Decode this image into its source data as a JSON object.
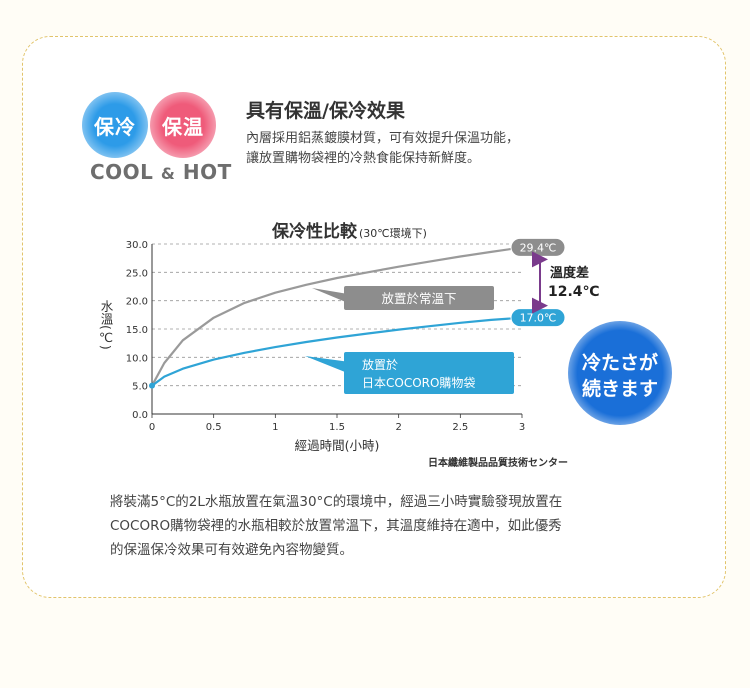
{
  "badges": {
    "cool": "保冷",
    "hot": "保温",
    "sub_left": "COOL",
    "sub_amp": "&",
    "sub_right": "HOT"
  },
  "heading": "具有保溫/保冷效果",
  "desc_lines": [
    "內層採用鋁蒸鍍膜材質，可有效提升保溫功能，",
    "讓放置購物袋裡的冷熱食能保持新鮮度。"
  ],
  "chart_data": {
    "type": "line",
    "title": "保冷性比較",
    "title_note": "(30℃環境下)",
    "xlabel": "經過時間(小時)",
    "ylabel": "水溫(℃)",
    "xlim": [
      0,
      3
    ],
    "ylim": [
      0,
      30
    ],
    "x_ticks": [
      "0",
      "0.5",
      "1",
      "1.5",
      "2",
      "2.5",
      "3"
    ],
    "y_ticks": [
      "0.0",
      "5.0",
      "10.0",
      "15.0",
      "20.0",
      "25.0",
      "30.0"
    ],
    "series": [
      {
        "name": "放置於常溫下",
        "color": "#9a9a9a",
        "x": [
          0,
          0.1,
          0.25,
          0.5,
          0.75,
          1,
          1.25,
          1.5,
          1.75,
          2,
          2.25,
          2.5,
          2.75,
          3
        ],
        "y": [
          5.0,
          9.0,
          13.0,
          17.0,
          19.6,
          21.4,
          22.8,
          24.0,
          25.0,
          26.0,
          26.9,
          27.8,
          28.6,
          29.4
        ],
        "end_label": "29.4℃"
      },
      {
        "name": "放置於\n日本COCORO購物袋",
        "color": "#2fa4d6",
        "x": [
          0,
          0.1,
          0.25,
          0.5,
          0.75,
          1,
          1.25,
          1.5,
          1.75,
          2,
          2.25,
          2.5,
          2.75,
          3
        ],
        "y": [
          5.0,
          6.6,
          8.0,
          9.6,
          10.8,
          11.8,
          12.7,
          13.5,
          14.2,
          14.9,
          15.5,
          16.1,
          16.6,
          17.0
        ],
        "end_label": "17.0℃"
      }
    ],
    "series_labels": [
      "放置於常溫下",
      "放置於",
      "日本COCORO購物袋"
    ],
    "diff_label": [
      "溫度差",
      "12.4℃"
    ],
    "grid": "dashed horizontal"
  },
  "source": "日本纖維製品品質技術センター",
  "bubble": [
    "冷たさが",
    "続きます"
  ],
  "bottom_lines": [
    "將裝滿5°C的2L水瓶放置在氣溫30°C的環境中，經過三小時實驗發現放置在",
    "COCORO購物袋裡的水瓶相較於放置常溫下，其溫度維持在適中，如此優秀",
    "的保溫保冷效果可有效避免內容物變質。"
  ]
}
